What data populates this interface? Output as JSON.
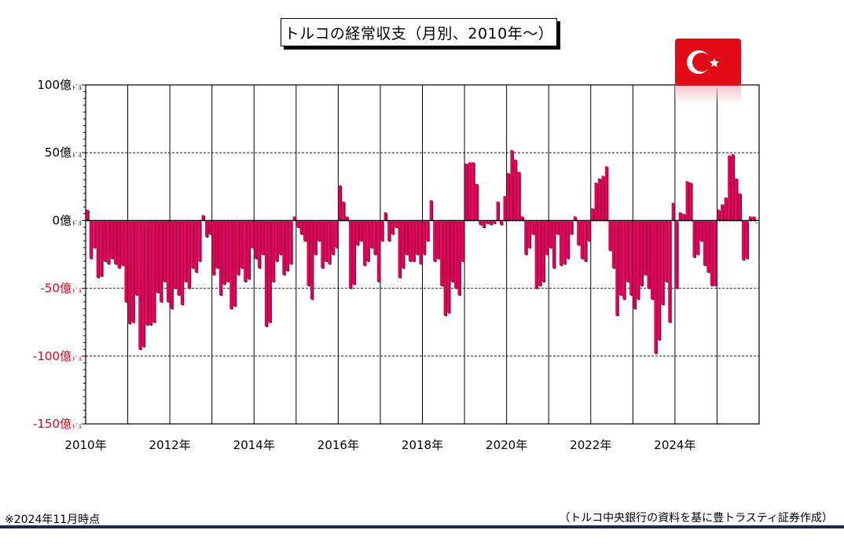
{
  "chart_data": {
    "type": "bar",
    "title": "トルコの経常収支（月別、2010年～）",
    "ylabel": "",
    "xlabel": "",
    "ylim": [
      -150,
      100
    ],
    "y_ticks": [
      {
        "value": 100,
        "label": "100億",
        "unit": "ﾄﾞﾙ",
        "color": "#000000"
      },
      {
        "value": 50,
        "label": "50億",
        "unit": "ﾄﾞﾙ",
        "color": "#000000"
      },
      {
        "value": 0,
        "label": "0億",
        "unit": "ﾄﾞﾙ",
        "color": "#000000"
      },
      {
        "value": -50,
        "label": "-50億",
        "unit": "ﾄﾞﾙ",
        "color": "#e0001a"
      },
      {
        "value": -100,
        "label": "-100億",
        "unit": "ﾄﾞﾙ",
        "color": "#e0001a"
      },
      {
        "value": -150,
        "label": "-150億",
        "unit": "ﾄﾞﾙ",
        "color": "#e0001a"
      }
    ],
    "x_tick_labels": [
      "2010年",
      "2012年",
      "2014年",
      "2016年",
      "2018年",
      "2020年",
      "2022年",
      "2024年"
    ],
    "start": "2010-01",
    "end": "2024-11",
    "grid": "dashed horizontal at ±50, ±100; vertical yearly lines",
    "series": [
      {
        "color": "#e8005a",
        "values": [
          8,
          -28,
          -20,
          -42,
          -41,
          -30,
          -32,
          -28,
          -32,
          -35,
          -33,
          -60,
          -76,
          -75,
          -55,
          -95,
          -93,
          -77,
          -77,
          -75,
          -53,
          -60,
          -45,
          -60,
          -65,
          -50,
          -55,
          -62,
          -45,
          -50,
          -35,
          -38,
          -30,
          4,
          -12,
          -10,
          -40,
          -35,
          -55,
          -47,
          -45,
          -65,
          -63,
          -40,
          -35,
          -45,
          -43,
          -20,
          -28,
          -35,
          -25,
          -78,
          -75,
          -45,
          -30,
          -25,
          -40,
          -37,
          -32,
          3,
          -5,
          -10,
          -15,
          -48,
          -58,
          -25,
          -15,
          -35,
          -30,
          -32,
          -25,
          -20,
          26,
          14,
          3,
          -50,
          -47,
          -18,
          -15,
          -33,
          -30,
          -20,
          -25,
          -45,
          -15,
          6,
          -15,
          -10,
          -5,
          -42,
          -35,
          -25,
          -30,
          -30,
          -25,
          -32,
          -25,
          -15,
          15,
          -30,
          -28,
          -48,
          -70,
          -68,
          -45,
          -50,
          -55,
          -30,
          42,
          43,
          43,
          27,
          -3,
          -5,
          -2,
          -3,
          -2,
          14,
          -3,
          18,
          35,
          52,
          45,
          36,
          3,
          -25,
          -20,
          -10,
          -50,
          -48,
          -45,
          -25,
          -20,
          -35,
          -10,
          -33,
          -32,
          -28,
          -10,
          3,
          -18,
          -28,
          -30,
          -15,
          9,
          28,
          31,
          33,
          40,
          -22,
          -35,
          -70,
          -55,
          -58,
          -45,
          -55,
          -65,
          -58,
          -48,
          -40,
          -50,
          -58,
          -98,
          -88,
          -62,
          -45,
          -75,
          13,
          -50,
          6,
          5,
          29,
          28,
          -27,
          -25,
          -15,
          -33,
          -38,
          -48,
          -48,
          8,
          12,
          17,
          48,
          49,
          31,
          20,
          -29,
          -28,
          3,
          3
        ]
      }
    ]
  },
  "flag": {
    "name": "turkey-flag",
    "colors": {
      "red": "#e30a17",
      "white": "#ffffff"
    }
  },
  "footnote": "※2024年11月時点",
  "source": "（トルコ中央銀行の資料を基に豊トラスティ証券作成）"
}
